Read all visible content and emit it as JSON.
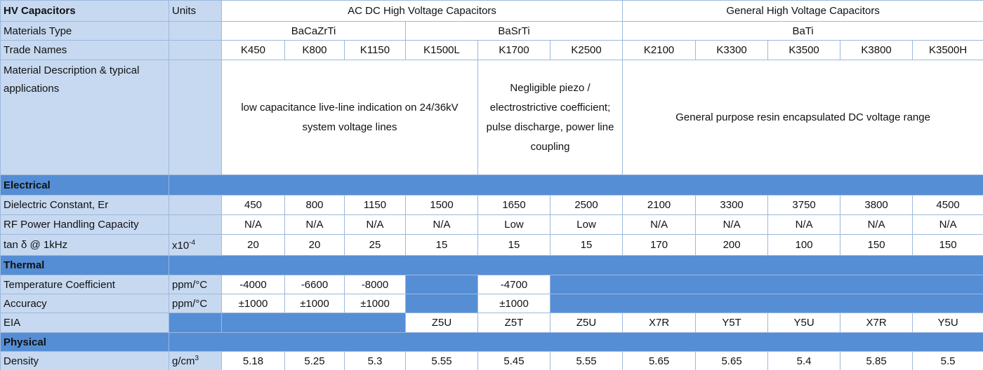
{
  "header": {
    "title": "HV Capacitors",
    "units": "Units",
    "groups": [
      "AC DC High Voltage Capacitors",
      "General High Voltage Capacitors"
    ]
  },
  "materials_type": {
    "label": "Materials Type",
    "values": [
      "BaCaZrTi",
      "BaSrTi",
      "BaTi"
    ]
  },
  "trade_names": {
    "label": "Trade Names",
    "values": [
      "K450",
      "K800",
      "K1150",
      "K1500L",
      "K1700",
      "K2500",
      "K2100",
      "K3300",
      "K3500",
      "K3800",
      "K3500H"
    ]
  },
  "description": {
    "label": "Material Description & typical applications",
    "values": [
      "low capacitance live-line indication on 24/36kV system voltage lines",
      "Negligible piezo / electrostrictive coefficient; pulse discharge, power line coupling",
      "General purpose resin encapsulated DC voltage range"
    ]
  },
  "sections": [
    {
      "title": "Electrical",
      "rows": [
        {
          "label": "Dielectric Constant, Er",
          "units": null,
          "values": [
            "450",
            "800",
            "1150",
            "1500",
            "1650",
            "2500",
            "2100",
            "3300",
            "3750",
            "3800",
            "4500"
          ]
        },
        {
          "label": "RF Power Handling Capacity",
          "units": null,
          "values": [
            "N/A",
            "N/A",
            "N/A",
            "N/A",
            "Low",
            "Low",
            "N/A",
            "N/A",
            "N/A",
            "N/A",
            "N/A"
          ]
        },
        {
          "label": "tan δ @ 1kHz",
          "units": {
            "base": "x10",
            "exponent": "-4"
          },
          "values": [
            "20",
            "20",
            "25",
            "15",
            "15",
            "15",
            "170",
            "200",
            "100",
            "150",
            "150"
          ]
        }
      ]
    },
    {
      "title": "Thermal",
      "rows": [
        {
          "label": "Temperature Coefficient",
          "units": "ppm/°C",
          "values": [
            "-4000",
            "-6600",
            "-8000",
            null,
            "-4700",
            null,
            null,
            null,
            null,
            null,
            null
          ]
        },
        {
          "label": "Accuracy",
          "units": "ppm/°C",
          "values": [
            "±1000",
            "±1000",
            "±1000",
            null,
            "±1000",
            null,
            null,
            null,
            null,
            null,
            null
          ]
        },
        {
          "label": "EIA",
          "units": null,
          "values": [
            null,
            null,
            null,
            "Z5U",
            "Z5T",
            "Z5U",
            "X7R",
            "Y5T",
            "Y5U",
            "X7R",
            "Y5U"
          ]
        }
      ]
    },
    {
      "title": "Physical",
      "rows": [
        {
          "label": "Density",
          "units": {
            "base": "g/cm",
            "exponent": "3"
          },
          "values": [
            "5.18",
            "5.25",
            "5.3",
            "5.55",
            "5.45",
            "5.55",
            "5.65",
            "5.65",
            "5.4",
            "5.85",
            "5.5"
          ]
        }
      ]
    }
  ]
}
